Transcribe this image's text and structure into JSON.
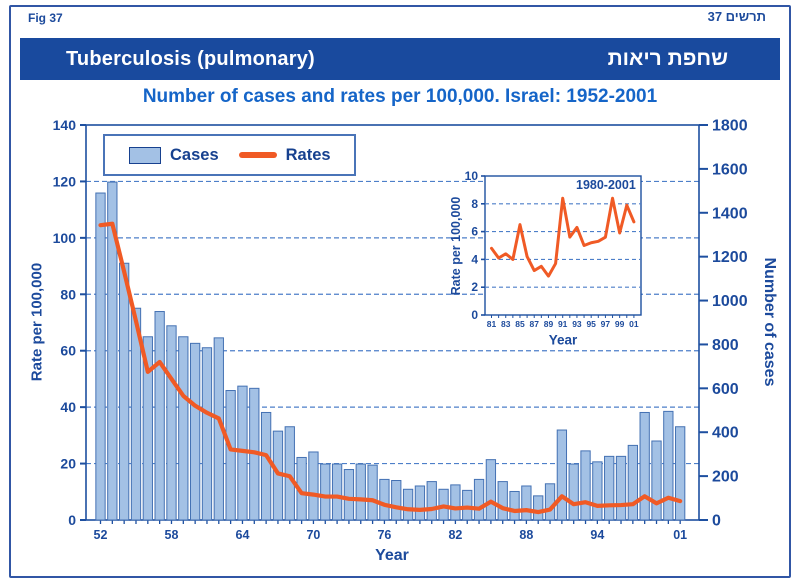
{
  "page": {
    "fig_label": "Fig 37",
    "fig_label_hebrew": "תרשים 37",
    "banner": {
      "title_en": "Tuberculosis (pulmonary)",
      "title_he": "שחפת ריאות"
    },
    "subtitle": "Number of cases and rates per 100,000. Israel: 1952-2001"
  },
  "legend": {
    "cases_label": "Cases",
    "rates_label": "Rates"
  },
  "colors": {
    "banner_bg": "#194a9e",
    "navy_text": "#1c4a9c",
    "subtitle_blue": "#1565c8",
    "bar_fill": "#a3c1e5",
    "bar_stroke": "#4471b3",
    "rates_orange": "#f05a25",
    "gridline_blue": "#4d7fc9",
    "frame_blue": "#1d4fa0"
  },
  "chart_data": {
    "type": "bar+line",
    "title": "Number of cases and rates per 100,000. Israel: 1952-2001",
    "xlabel": "Year",
    "grid": "dashed horizontal",
    "legend_position": "top-left",
    "left_axis": {
      "title": "Rate per 100,000",
      "min": 0,
      "max": 140,
      "step": 20
    },
    "right_axis": {
      "title": "Number of cases",
      "min": 0,
      "max": 1800,
      "step": 200
    },
    "x_ticks": [
      {
        "year": 1952,
        "label": "52"
      },
      {
        "year": 1958,
        "label": "58"
      },
      {
        "year": 1964,
        "label": "64"
      },
      {
        "year": 1970,
        "label": "70"
      },
      {
        "year": 1976,
        "label": "76"
      },
      {
        "year": 1982,
        "label": "82"
      },
      {
        "year": 1988,
        "label": "88"
      },
      {
        "year": 1994,
        "label": "94"
      },
      {
        "year": 2001,
        "label": "01"
      }
    ],
    "years": [
      1952,
      1953,
      1954,
      1955,
      1956,
      1957,
      1958,
      1959,
      1960,
      1961,
      1962,
      1963,
      1964,
      1965,
      1966,
      1967,
      1968,
      1969,
      1970,
      1971,
      1972,
      1973,
      1974,
      1975,
      1976,
      1977,
      1978,
      1979,
      1980,
      1981,
      1982,
      1983,
      1984,
      1985,
      1986,
      1987,
      1988,
      1989,
      1990,
      1991,
      1992,
      1993,
      1994,
      1995,
      1996,
      1997,
      1998,
      1999,
      2000,
      2001
    ],
    "series": [
      {
        "name": "Cases",
        "axis": "right",
        "style": "bar",
        "values": [
          1490,
          1540,
          1170,
          965,
          835,
          950,
          885,
          835,
          805,
          785,
          830,
          590,
          610,
          600,
          490,
          405,
          425,
          285,
          310,
          255,
          255,
          230,
          255,
          250,
          185,
          180,
          140,
          155,
          175,
          140,
          160,
          135,
          185,
          275,
          175,
          130,
          155,
          110,
          165,
          410,
          255,
          315,
          265,
          290,
          290,
          340,
          490,
          360,
          495,
          425
        ]
      },
      {
        "name": "Rates",
        "axis": "left",
        "style": "line",
        "values": [
          104.5,
          105,
          88,
          70.5,
          52.5,
          56,
          50,
          44,
          40.5,
          38,
          36,
          25,
          24.5,
          24,
          23,
          16.5,
          15.5,
          9.5,
          9,
          8.3,
          8.3,
          7.5,
          7.3,
          7,
          5.4,
          4.5,
          3.8,
          3.6,
          3.9,
          4.8,
          4.1,
          4.4,
          4,
          6.5,
          4.2,
          3.2,
          3.5,
          2.8,
          3.7,
          8.4,
          5.6,
          6.3,
          5,
          5.2,
          5.3,
          5.6,
          8.4,
          5.9,
          7.9,
          6.7
        ]
      }
    ],
    "inset": {
      "type": "line",
      "title": "1980-2001",
      "ylabel": "Rate per 100,000",
      "xlabel": "Year",
      "ylim": [
        0,
        10
      ],
      "ystep": 2,
      "x_tick_labels": [
        "81",
        "83",
        "85",
        "87",
        "89",
        "91",
        "93",
        "95",
        "97",
        "99",
        "01"
      ],
      "years": [
        1981,
        1982,
        1983,
        1984,
        1985,
        1986,
        1987,
        1988,
        1989,
        1990,
        1991,
        1992,
        1993,
        1994,
        1995,
        1996,
        1997,
        1998,
        1999,
        2000,
        2001
      ],
      "rates": [
        4.8,
        4.1,
        4.4,
        4,
        6.5,
        4.2,
        3.2,
        3.5,
        2.8,
        3.7,
        8.4,
        5.6,
        6.3,
        5,
        5.2,
        5.3,
        5.6,
        8.4,
        5.9,
        7.9,
        6.7
      ]
    }
  }
}
